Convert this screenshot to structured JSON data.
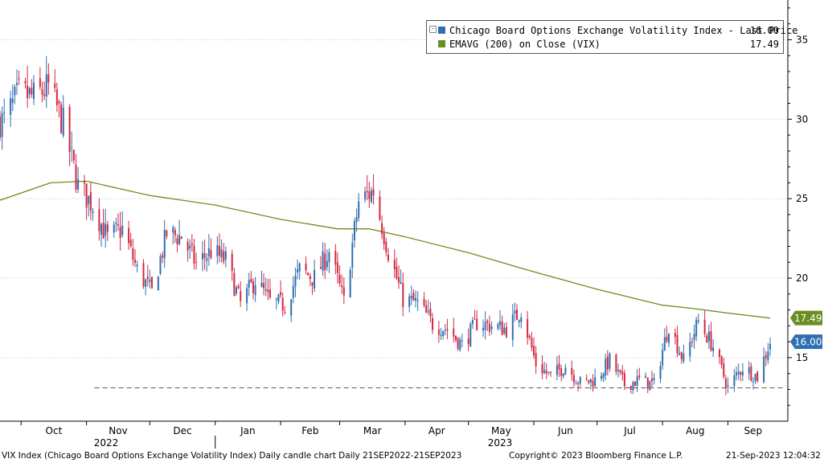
{
  "chart_data": {
    "type": "candlestick",
    "ticker_description": "VIX Index (Chicago Board Options Exchange Volatility Index) Daily candle chart",
    "date_range": "Daily 21SEP2022-21SEP2023",
    "y_axis": {
      "position": "right",
      "ylim": [
        11,
        37.5
      ],
      "ticks": [
        15,
        20,
        25,
        30,
        35
      ]
    },
    "x_axis": {
      "months": [
        "Oct",
        "Nov",
        "Dec",
        "Jan",
        "Feb",
        "Mar",
        "Apr",
        "May",
        "Jun",
        "Jul",
        "Aug",
        "Sep"
      ],
      "years": [
        "2022",
        "2023"
      ]
    },
    "series": [
      {
        "name": "Chicago Board Options Exchange Volatility Index - Last Price",
        "legend_value": "16.00",
        "last_value_label": "16.00",
        "color": "#2e6fb0",
        "down_color": "#d6263f",
        "weekly_close": [
          [
            "2022-09-23",
            29.9
          ],
          [
            "2022-09-30",
            31.6
          ],
          [
            "2022-10-07",
            31.4
          ],
          [
            "2022-10-14",
            32.0
          ],
          [
            "2022-10-21",
            29.7
          ],
          [
            "2022-10-28",
            25.8
          ],
          [
            "2022-11-04",
            24.6
          ],
          [
            "2022-11-11",
            22.5
          ],
          [
            "2022-11-18",
            23.1
          ],
          [
            "2022-11-25",
            20.5
          ],
          [
            "2022-12-02",
            19.1
          ],
          [
            "2022-12-09",
            22.8
          ],
          [
            "2022-12-16",
            22.6
          ],
          [
            "2022-12-23",
            20.9
          ],
          [
            "2022-12-30",
            21.7
          ],
          [
            "2023-01-06",
            21.1
          ],
          [
            "2023-01-13",
            18.4
          ],
          [
            "2023-01-20",
            19.9
          ],
          [
            "2023-01-27",
            18.5
          ],
          [
            "2023-02-03",
            18.3
          ],
          [
            "2023-02-10",
            20.5
          ],
          [
            "2023-02-17",
            20.0
          ],
          [
            "2023-02-24",
            21.7
          ],
          [
            "2023-03-03",
            18.5
          ],
          [
            "2023-03-10",
            24.8
          ],
          [
            "2023-03-17",
            25.5
          ],
          [
            "2023-03-24",
            21.7
          ],
          [
            "2023-03-31",
            18.7
          ],
          [
            "2023-04-07",
            18.4
          ],
          [
            "2023-04-14",
            17.1
          ],
          [
            "2023-04-21",
            16.8
          ],
          [
            "2023-04-28",
            15.8
          ],
          [
            "2023-05-05",
            17.2
          ],
          [
            "2023-05-12",
            17.0
          ],
          [
            "2023-05-19",
            16.8
          ],
          [
            "2023-05-26",
            18.0
          ],
          [
            "2023-06-02",
            14.6
          ],
          [
            "2023-06-09",
            13.8
          ],
          [
            "2023-06-16",
            14.5
          ],
          [
            "2023-06-23",
            13.4
          ],
          [
            "2023-06-30",
            13.6
          ],
          [
            "2023-07-07",
            14.8
          ],
          [
            "2023-07-14",
            13.3
          ],
          [
            "2023-07-21",
            13.6
          ],
          [
            "2023-07-28",
            13.3
          ],
          [
            "2023-08-04",
            17.1
          ],
          [
            "2023-08-11",
            14.8
          ],
          [
            "2023-08-18",
            17.3
          ],
          [
            "2023-08-25",
            15.7
          ],
          [
            "2023-09-01",
            13.1
          ],
          [
            "2023-09-08",
            14.4
          ],
          [
            "2023-09-15",
            13.8
          ],
          [
            "2023-09-21",
            16.0
          ]
        ],
        "reference_line": {
          "value": 13.1,
          "style": "dashed",
          "start": "2022-11-01"
        }
      },
      {
        "name": "EMAVG (200)  on Close (VIX)",
        "legend_value": "17.49",
        "last_value_label": "17.49",
        "color": "#6b8e23",
        "points": [
          [
            "2022-09-21",
            24.9
          ],
          [
            "2022-10-15",
            26.0
          ],
          [
            "2022-11-01",
            26.1
          ],
          [
            "2022-12-01",
            25.2
          ],
          [
            "2023-01-01",
            24.6
          ],
          [
            "2023-02-01",
            23.7
          ],
          [
            "2023-02-28",
            23.1
          ],
          [
            "2023-03-15",
            23.1
          ],
          [
            "2023-04-01",
            22.6
          ],
          [
            "2023-05-01",
            21.6
          ],
          [
            "2023-06-01",
            20.4
          ],
          [
            "2023-07-01",
            19.3
          ],
          [
            "2023-08-01",
            18.3
          ],
          [
            "2023-08-15",
            18.1
          ],
          [
            "2023-09-01",
            17.8
          ],
          [
            "2023-09-21",
            17.49
          ]
        ]
      }
    ],
    "grid": true,
    "legend_placement": "top-right"
  },
  "footer": {
    "left": "VIX Index (Chicago Board Options Exchange Volatility Index) Daily candle chart  Daily 21SEP2022-21SEP2023",
    "center": "Copyright© 2023 Bloomberg Finance L.P.",
    "right": "21-Sep-2023 12:04:32"
  }
}
